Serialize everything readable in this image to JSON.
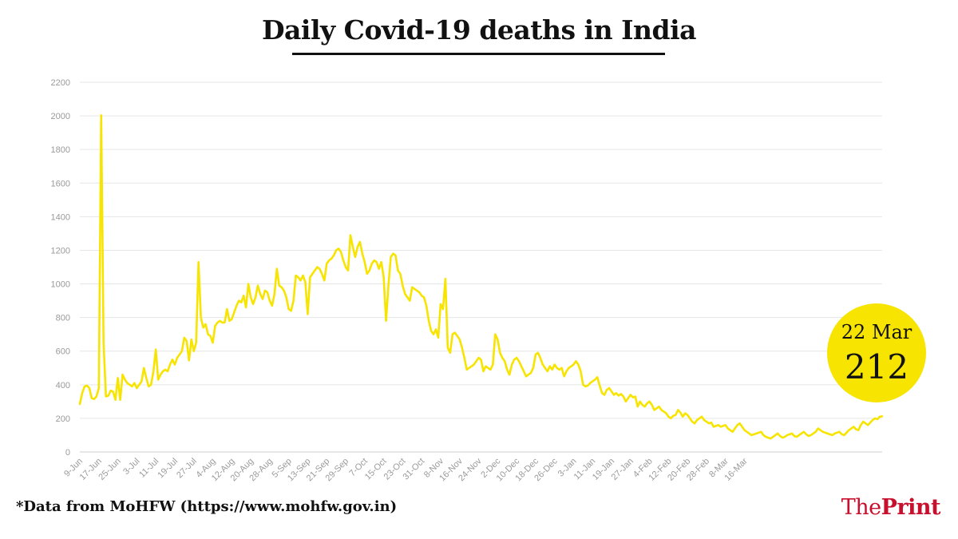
{
  "title": "Daily Covid-19 deaths in India",
  "source_note": "*Data from MoHFW (https://www.mohfw.gov.in)",
  "brand": {
    "part1": "The",
    "part2": "Print",
    "color": "#c8102e"
  },
  "highlight": {
    "date": "22 Mar",
    "value": "212",
    "color": "#f7e400"
  },
  "chart_data": {
    "type": "line",
    "title": "Daily Covid-19 deaths in India",
    "xlabel": "",
    "ylabel": "",
    "ylim": [
      0,
      2200
    ],
    "yticks": [
      0,
      200,
      400,
      600,
      800,
      1000,
      1200,
      1400,
      1600,
      1800,
      2000,
      2200
    ],
    "grid": true,
    "line_color": "#f7e400",
    "x_start": "9-Jun",
    "x_end": "22-Mar",
    "xtick_labels": [
      "9-Jun",
      "17-Jun",
      "25-Jun",
      "3-Jul",
      "11-Jul",
      "19-Jul",
      "27-Jul",
      "4-Aug",
      "12-Aug",
      "20-Aug",
      "28-Aug",
      "5-Sep",
      "13-Sep",
      "21-Sep",
      "29-Sep",
      "7-Oct",
      "15-Oct",
      "23-Oct",
      "31-Oct",
      "8-Nov",
      "16-Nov",
      "24-Nov",
      "2-Dec",
      "10-Dec",
      "18-Dec",
      "26-Dec",
      "3-Jan",
      "11-Jan",
      "19-Jan",
      "27-Jan",
      "4-Feb",
      "12-Feb",
      "20-Feb",
      "28-Feb",
      "8-Mar",
      "16-Mar"
    ],
    "series": [
      {
        "values": [
          285,
          350,
          390,
          395,
          380,
          320,
          315,
          330,
          380,
          2003,
          650,
          330,
          335,
          365,
          360,
          310,
          440,
          310,
          460,
          430,
          410,
          400,
          390,
          410,
          380,
          400,
          420,
          500,
          440,
          390,
          400,
          480,
          610,
          430,
          460,
          480,
          490,
          480,
          520,
          550,
          520,
          560,
          580,
          600,
          680,
          660,
          545,
          670,
          600,
          650,
          1130,
          800,
          740,
          760,
          700,
          690,
          650,
          750,
          770,
          780,
          770,
          770,
          850,
          780,
          790,
          830,
          870,
          900,
          890,
          930,
          860,
          1000,
          920,
          880,
          920,
          990,
          940,
          910,
          960,
          950,
          900,
          870,
          940,
          1090,
          990,
          980,
          960,
          920,
          850,
          840,
          900,
          1050,
          1040,
          1020,
          1050,
          1010,
          820,
          1040,
          1060,
          1080,
          1100,
          1090,
          1060,
          1020,
          1120,
          1140,
          1150,
          1170,
          1200,
          1210,
          1190,
          1140,
          1100,
          1080,
          1290,
          1220,
          1160,
          1220,
          1250,
          1180,
          1130,
          1060,
          1080,
          1120,
          1140,
          1130,
          1090,
          1130,
          1040,
          780,
          990,
          1160,
          1180,
          1170,
          1080,
          1060,
          990,
          940,
          920,
          900,
          980,
          970,
          960,
          950,
          930,
          920,
          870,
          780,
          720,
          700,
          730,
          680,
          880,
          850,
          1030,
          620,
          590,
          700,
          710,
          690,
          670,
          620,
          560,
          490,
          500,
          510,
          520,
          540,
          560,
          550,
          480,
          510,
          500,
          490,
          520,
          700,
          670,
          590,
          560,
          540,
          490,
          460,
          520,
          550,
          560,
          540,
          510,
          480,
          450,
          460,
          470,
          500,
          580,
          590,
          560,
          520,
          500,
          480,
          510,
          490,
          520,
          500,
          490,
          500,
          450,
          480,
          500,
          510,
          520,
          540,
          520,
          480,
          400,
          390,
          395,
          410,
          420,
          430,
          445,
          395,
          350,
          340,
          370,
          380,
          360,
          340,
          350,
          335,
          345,
          330,
          300,
          320,
          340,
          325,
          330,
          270,
          300,
          280,
          270,
          290,
          300,
          280,
          250,
          260,
          270,
          250,
          240,
          230,
          210,
          200,
          215,
          220,
          250,
          235,
          210,
          230,
          220,
          200,
          180,
          170,
          190,
          200,
          210,
          190,
          180,
          170,
          175,
          150,
          155,
          160,
          150,
          155,
          160,
          140,
          130,
          120,
          140,
          160,
          170,
          150,
          130,
          120,
          110,
          100,
          105,
          110,
          115,
          120,
          100,
          90,
          85,
          80,
          90,
          100,
          110,
          95,
          85,
          90,
          100,
          105,
          110,
          95,
          90,
          100,
          110,
          120,
          105,
          95,
          100,
          110,
          120,
          140,
          130,
          120,
          115,
          110,
          105,
          100,
          110,
          115,
          120,
          105,
          100,
          115,
          130,
          140,
          150,
          135,
          130,
          160,
          180,
          170,
          160,
          175,
          190,
          200,
          195,
          210,
          212
        ]
      }
    ]
  }
}
